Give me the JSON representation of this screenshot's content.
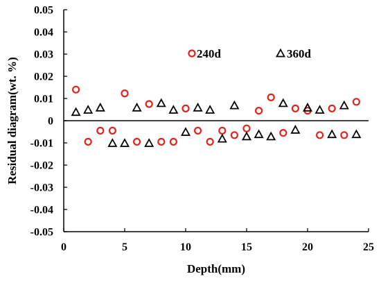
{
  "chart_data": {
    "type": "scatter",
    "xlabel": "Depth(mm)",
    "ylabel": "Residual diagram(wt. %)",
    "xlim": [
      0,
      25
    ],
    "ylim": [
      -0.05,
      0.05
    ],
    "xticks": [
      "0",
      "5",
      "10",
      "15",
      "20",
      "25"
    ],
    "yticks": [
      "-0.05",
      "-0.04",
      "-0.03",
      "-0.02",
      "-0.01",
      "0",
      "0.01",
      "0.02",
      "0.03",
      "0.04",
      "0.05"
    ],
    "grid": false,
    "legend_position": "top-right, inside plot",
    "series": [
      {
        "name": "240d",
        "marker": "circle",
        "color": "#e8221b",
        "x": [
          1,
          2,
          3,
          4,
          5,
          6,
          7,
          8,
          9,
          10,
          11,
          12,
          13,
          14,
          15,
          16,
          17,
          18,
          19,
          20,
          21,
          22,
          23,
          24
        ],
        "y": [
          0.014,
          -0.0095,
          -0.0045,
          -0.0045,
          0.0123,
          -0.0095,
          0.0075,
          -0.0095,
          -0.0095,
          0.0055,
          -0.0045,
          -0.0095,
          -0.0045,
          -0.0065,
          -0.0035,
          0.0045,
          0.0105,
          -0.0055,
          0.0055,
          0.0045,
          -0.0065,
          0.0055,
          -0.0065,
          0.0085
        ]
      },
      {
        "name": "360d",
        "marker": "triangle",
        "color": "#000000",
        "x": [
          1,
          2,
          3,
          4,
          5,
          6,
          7,
          8,
          9,
          10,
          11,
          12,
          13,
          14,
          15,
          16,
          17,
          18,
          19,
          20,
          21,
          22,
          23,
          24
        ],
        "y": [
          0.004,
          0.005,
          0.006,
          -0.01,
          -0.01,
          0.006,
          -0.01,
          0.008,
          0.005,
          -0.005,
          0.006,
          0.005,
          -0.008,
          0.007,
          -0.007,
          -0.006,
          -0.007,
          0.008,
          -0.004,
          0.006,
          0.005,
          -0.006,
          0.007,
          -0.006
        ]
      }
    ]
  }
}
